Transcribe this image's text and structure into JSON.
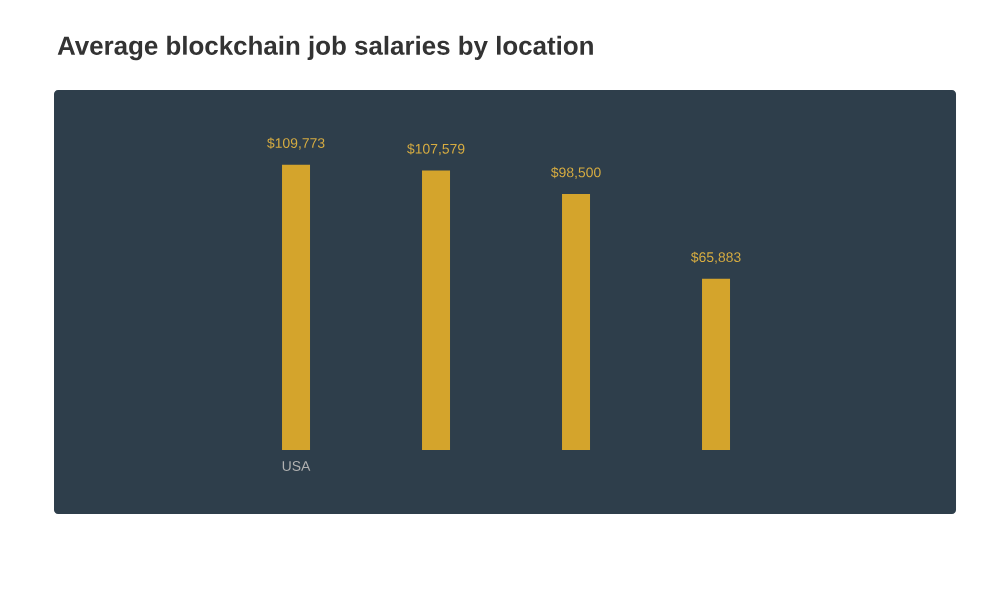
{
  "chart_data": {
    "type": "bar",
    "title": "Average blockchain job salaries by location",
    "categories": [
      "USA",
      null,
      null,
      null
    ],
    "values": [
      109773,
      107579,
      98500,
      65883
    ],
    "value_labels": [
      "$109,773",
      "$107,579",
      "$98,500",
      "$65,883"
    ],
    "color": "#d4a42c"
  }
}
